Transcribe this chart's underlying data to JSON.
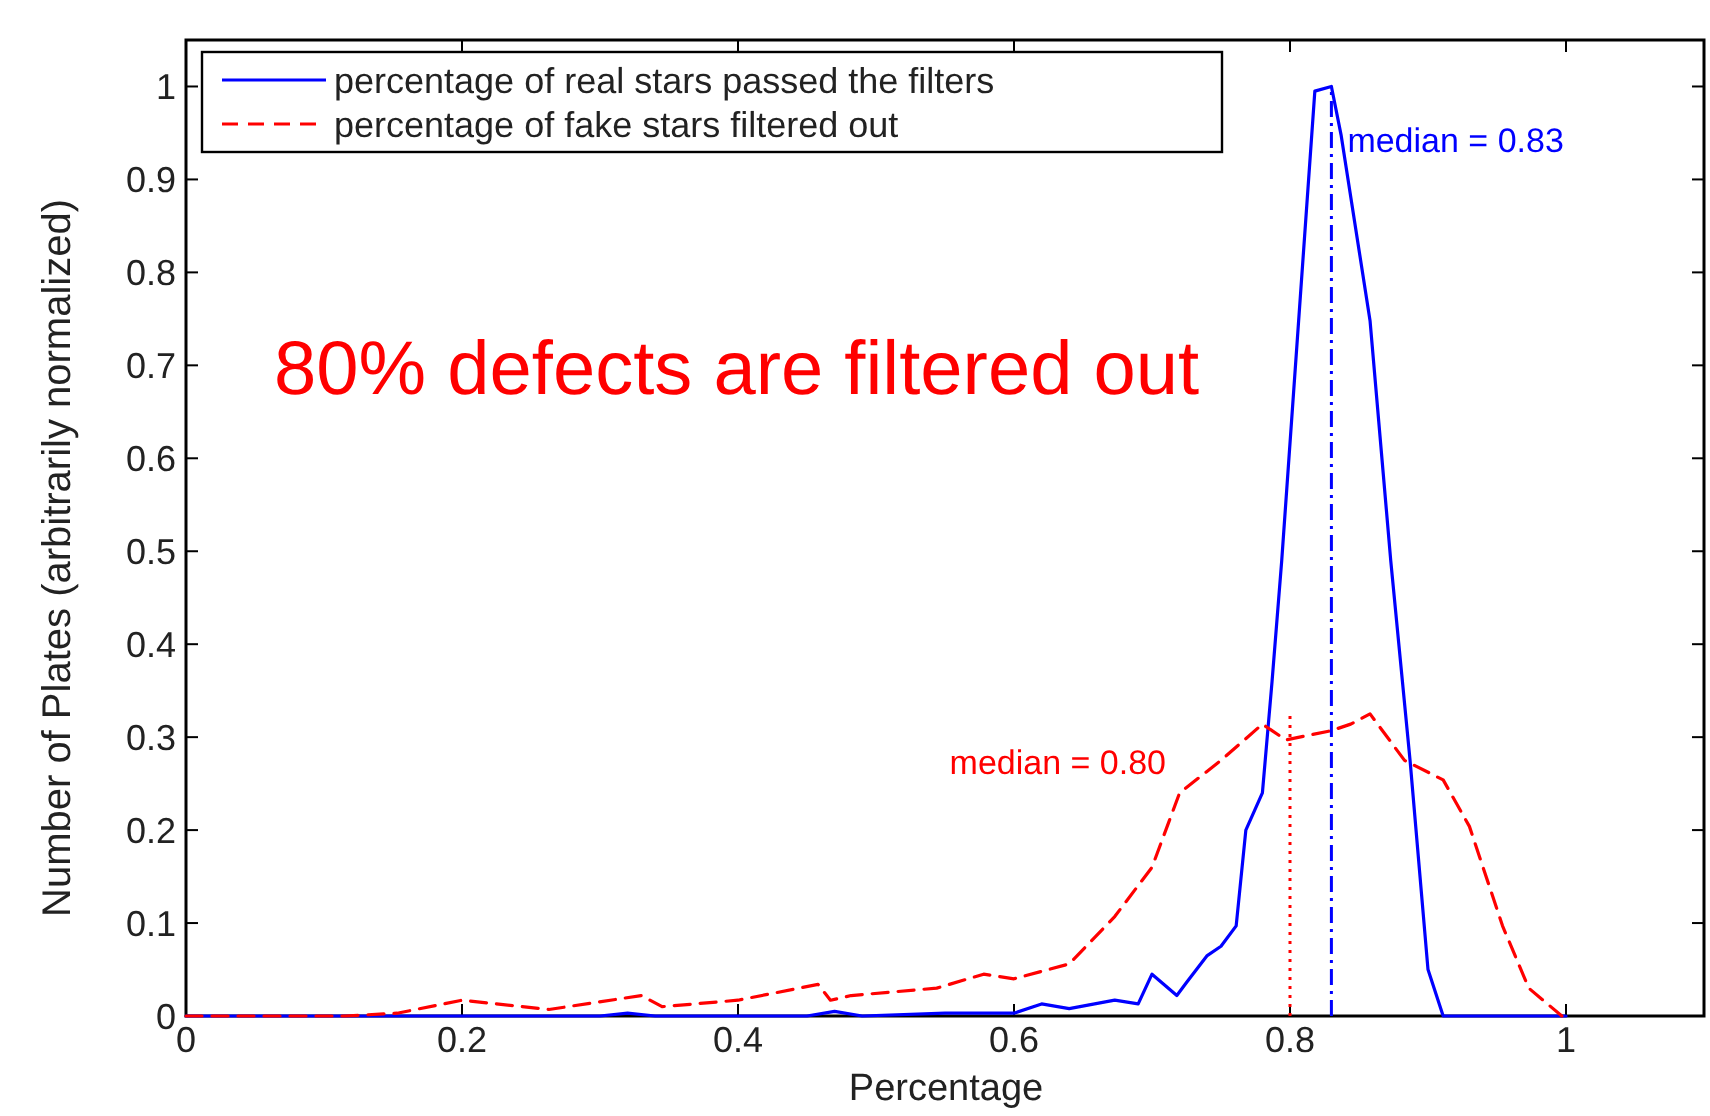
{
  "chart_data": {
    "type": "line",
    "xlabel": "Percentage",
    "ylabel": "Number of Plates (arbitrarily normalized)",
    "xlim": [
      0,
      1.1
    ],
    "xticks": [
      0,
      0.2,
      0.4,
      0.6,
      0.8,
      1
    ],
    "ylim": [
      0,
      1.05
    ],
    "yticks": [
      0,
      0.1,
      0.2,
      0.3,
      0.4,
      0.5,
      0.6,
      0.7,
      0.8,
      0.9,
      1
    ],
    "grid": false,
    "legend": "top left",
    "marker": "none",
    "series": [
      {
        "name": "percentage of real stars passed the filters",
        "color": "#0000ff",
        "line_style": "solid",
        "x": [
          0,
          0.2,
          0.3,
          0.32,
          0.34,
          0.45,
          0.47,
          0.49,
          0.55,
          0.6,
          0.62,
          0.64,
          0.673,
          0.69,
          0.7,
          0.718,
          0.725,
          0.74,
          0.75,
          0.761,
          0.768,
          0.78,
          0.787,
          0.794,
          0.818,
          0.83,
          0.837,
          0.858,
          0.873,
          0.887,
          0.9,
          0.911,
          1
        ],
        "values": [
          0,
          0,
          0,
          0.003,
          0,
          0,
          0.005,
          0,
          0.003,
          0.003,
          0.013,
          0.008,
          0.017,
          0.013,
          0.045,
          0.022,
          0.036,
          0.065,
          0.075,
          0.097,
          0.2,
          0.24,
          0.36,
          0.49,
          0.995,
          1.0,
          0.948,
          0.748,
          0.49,
          0.275,
          0.05,
          0,
          0
        ]
      },
      {
        "name": "percentage of fake stars filtered out",
        "color": "#ff0000",
        "line_style": "dashed",
        "x": [
          0,
          0.1,
          0.115,
          0.153,
          0.2,
          0.263,
          0.33,
          0.345,
          0.4,
          0.458,
          0.467,
          0.482,
          0.544,
          0.578,
          0.6,
          0.64,
          0.673,
          0.7,
          0.72,
          0.75,
          0.78,
          0.797,
          0.83,
          0.844,
          0.858,
          0.883,
          0.911,
          0.93,
          0.954,
          0.973,
          0.997
        ],
        "values": [
          0,
          0,
          0,
          0.003,
          0.017,
          0.007,
          0.022,
          0.01,
          0.017,
          0.034,
          0.017,
          0.022,
          0.03,
          0.045,
          0.04,
          0.056,
          0.107,
          0.16,
          0.24,
          0.275,
          0.314,
          0.297,
          0.307,
          0.314,
          0.325,
          0.275,
          0.254,
          0.204,
          0.097,
          0.03,
          0
        ]
      }
    ],
    "ref_lines": [
      {
        "axis": "x",
        "value": 0.83,
        "label": "median = 0.83",
        "color": "#0000ff",
        "line_style": "dashdot"
      },
      {
        "axis": "x",
        "value": 0.8,
        "label": "median = 0.80",
        "color": "#ff0000",
        "line_style": "dotted"
      }
    ],
    "annotations": [
      "80% defects are filtered out"
    ]
  }
}
